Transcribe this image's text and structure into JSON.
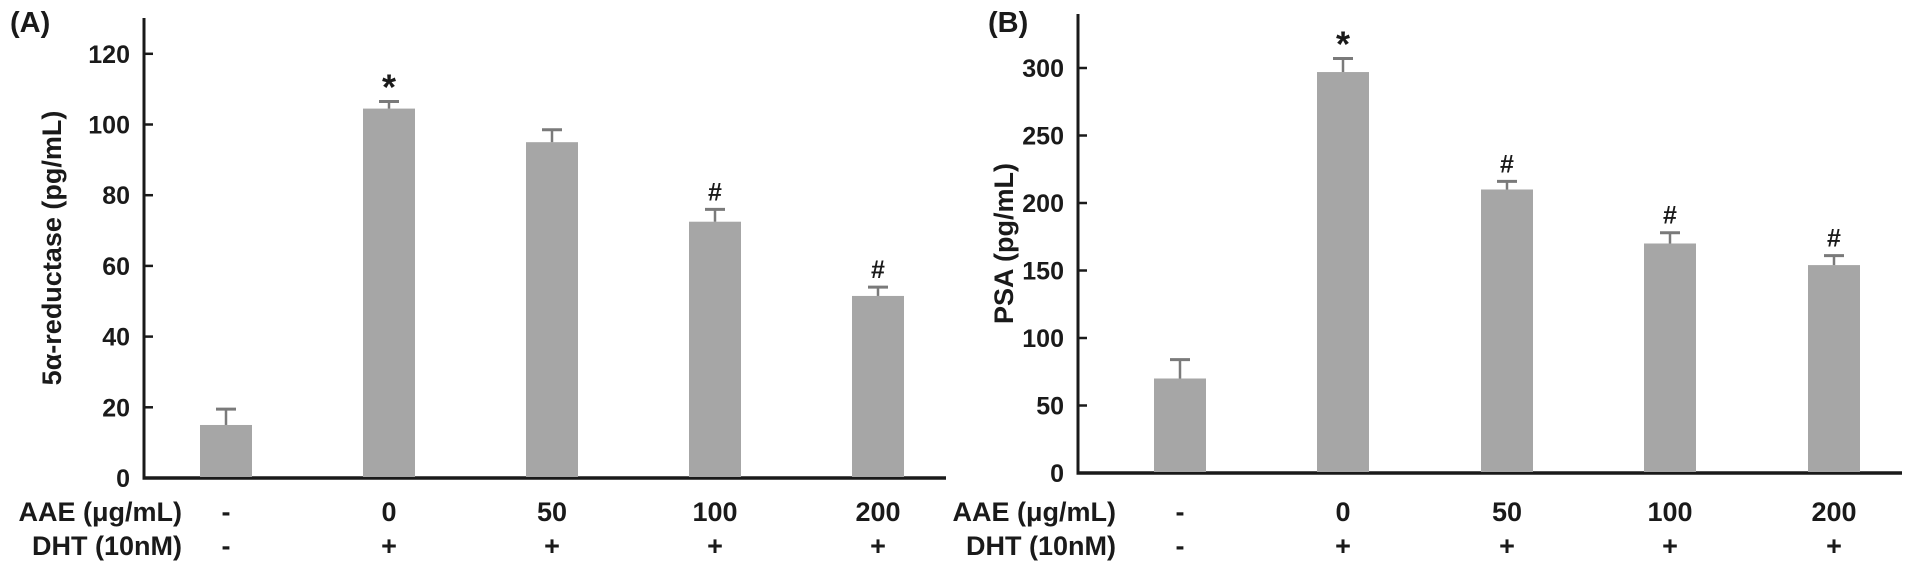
{
  "figure": {
    "background": "#ffffff",
    "bar_color": "#a6a6a6",
    "error_bar_color": "#7a7a7a",
    "axis_color": "#1a1a1a",
    "text_color": "#1a1a1a"
  },
  "chart_data": [
    {
      "type": "bar",
      "panel_label": "(A)",
      "title": "",
      "ylabel": "5α-reductase (pg/mL)",
      "xlabel": "",
      "ylim": [
        0,
        130
      ],
      "ytick_step": 20,
      "ytick_max": 120,
      "grid": false,
      "legend": "none",
      "row1_header": "AAE (μg/mL)",
      "row2_header": "DHT (10nM)",
      "categories": [
        "-",
        "0",
        "50",
        "100",
        "200"
      ],
      "dht_row": [
        "-",
        "+",
        "+",
        "+",
        "+"
      ],
      "values": [
        15,
        104.5,
        95,
        72.5,
        51.5
      ],
      "errors": [
        4.5,
        2,
        3.5,
        3.5,
        2.5
      ],
      "annotations": [
        "",
        "*",
        "",
        "#",
        "#"
      ]
    },
    {
      "type": "bar",
      "panel_label": "(B)",
      "title": "",
      "ylabel": "PSA (pg/mL)",
      "xlabel": "",
      "ylim": [
        0,
        340
      ],
      "ytick_step": 50,
      "ytick_max": 300,
      "grid": false,
      "legend": "none",
      "row1_header": "AAE (μg/mL)",
      "row2_header": "DHT (10nM)",
      "categories": [
        "-",
        "0",
        "50",
        "100",
        "200"
      ],
      "dht_row": [
        "-",
        "+",
        "+",
        "+",
        "+"
      ],
      "values": [
        70,
        297,
        210,
        170,
        154
      ],
      "errors": [
        14,
        10,
        6,
        8,
        7
      ],
      "annotations": [
        "",
        "*",
        "#",
        "#",
        "#"
      ]
    }
  ]
}
